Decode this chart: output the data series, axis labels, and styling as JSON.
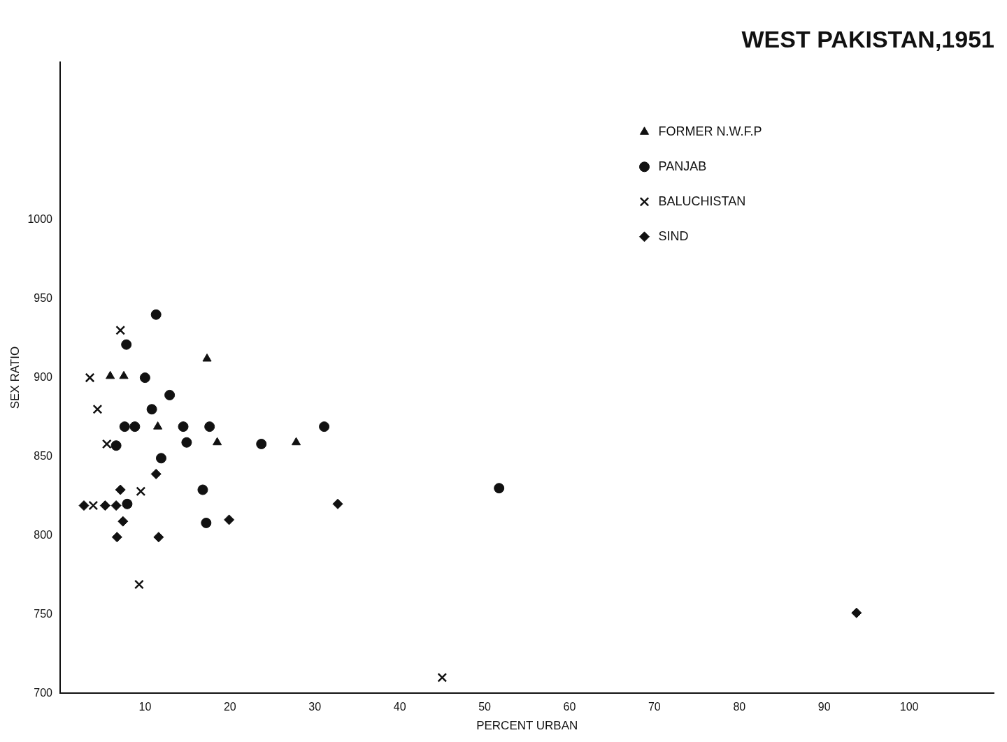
{
  "chart_data": {
    "type": "scatter",
    "title": "WEST PAKISTAN,1951",
    "xlabel": "PERCENT URBAN",
    "ylabel": "SEX RATIO",
    "xlim": [
      0,
      110
    ],
    "xticks": [
      10,
      20,
      30,
      40,
      50,
      60,
      70,
      80,
      90,
      100
    ],
    "ylim": [
      700,
      1100
    ],
    "yticks": [
      700,
      750,
      800,
      850,
      900,
      950,
      1000
    ],
    "grid": false,
    "legend": "top right",
    "series": [
      {
        "name": "FORMER N.W.F.P",
        "color": "#111111",
        "marker": "triangle",
        "x": [
          5.9,
          7.5,
          17.3,
          11.5,
          18.5,
          27.8
        ],
        "values": [
          901,
          901,
          912,
          869,
          859,
          859
        ]
      },
      {
        "name": "PANJAB",
        "color": "#111111",
        "marker": "circle",
        "x": [
          11.3,
          7.8,
          10.0,
          12.9,
          10.8,
          7.6,
          8.8,
          14.5,
          17.6,
          31.1,
          6.6,
          14.9,
          23.7,
          11.9,
          16.8,
          7.9,
          17.2,
          51.7
        ],
        "values": [
          940,
          921,
          900,
          889,
          880,
          869,
          869,
          869,
          869,
          869,
          857,
          859,
          858,
          849,
          829,
          820,
          808,
          830
        ]
      },
      {
        "name": "BALUCHISTAN",
        "color": "#111111",
        "marker": "cross",
        "x": [
          7.1,
          3.5,
          4.4,
          5.5,
          3.9,
          9.5,
          9.3,
          45.0
        ],
        "values": [
          930,
          900,
          880,
          858,
          819,
          828,
          769,
          710
        ]
      },
      {
        "name": "SIND",
        "color": "#111111",
        "marker": "diamond",
        "x": [
          2.8,
          5.3,
          6.6,
          7.1,
          7.4,
          6.7,
          11.3,
          11.6,
          19.9,
          32.7,
          93.8
        ],
        "values": [
          819,
          819,
          819,
          829,
          809,
          799,
          839,
          799,
          810,
          820,
          751
        ]
      }
    ]
  }
}
